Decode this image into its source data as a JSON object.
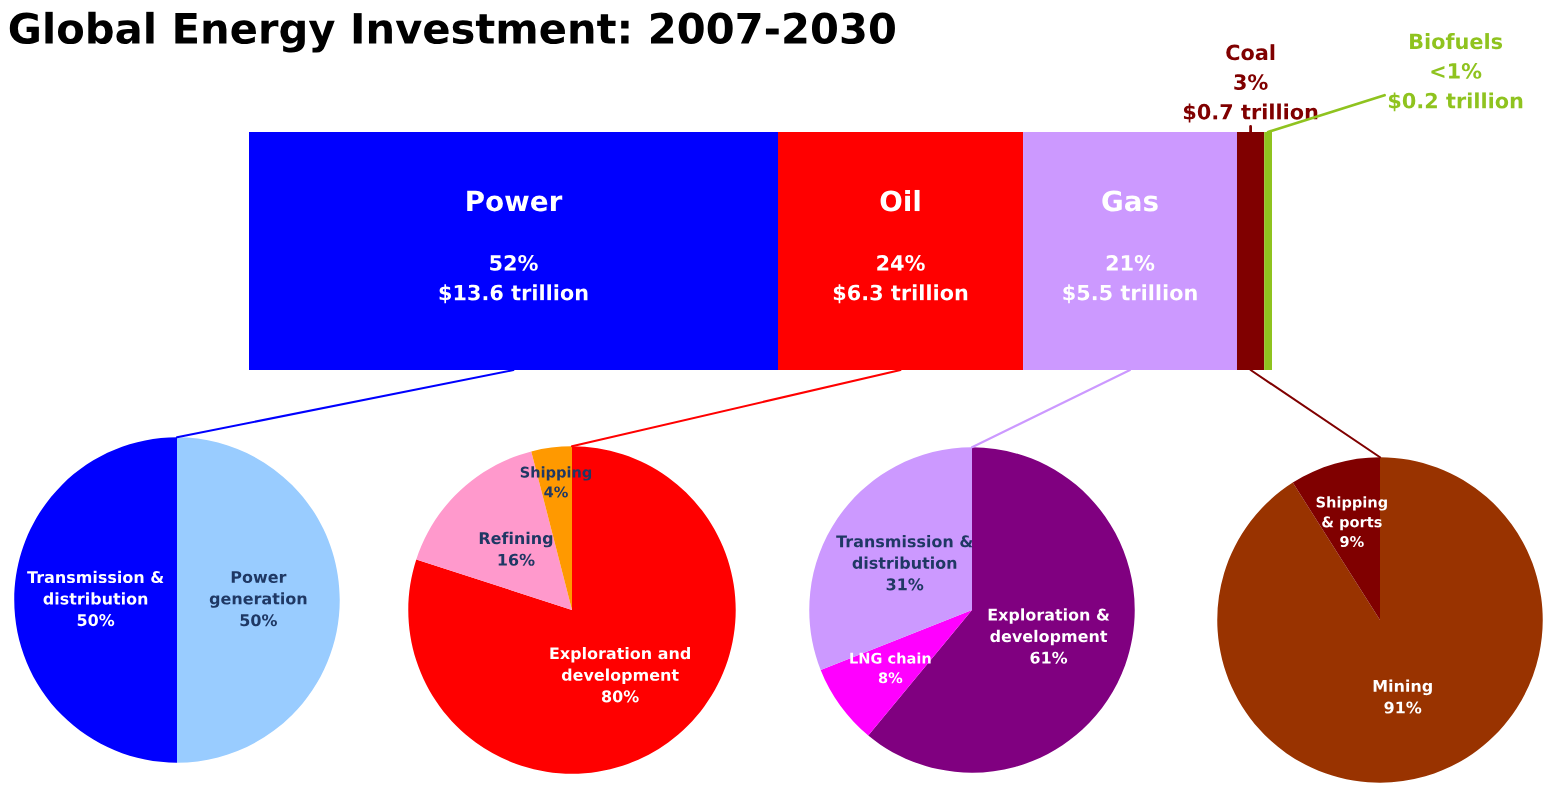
{
  "chart_data": [
    {
      "type": "bar",
      "title": "Global Energy Investment: 2007-2030",
      "orientation": "horizontal",
      "stacked": true,
      "tick_labels": false,
      "categories": [
        null
      ],
      "series": [
        {
          "name": "Power",
          "color": "#0000ff",
          "values": [
            13.6
          ],
          "value_labels": [
            "52%\n$13.6 trillion"
          ]
        },
        {
          "name": "Oil",
          "color": "#ff0000",
          "values": [
            6.3
          ],
          "value_labels": [
            "24%\n$6.3 trillion"
          ]
        },
        {
          "name": "Gas",
          "color": "#cc99ff",
          "values": [
            5.5
          ],
          "value_labels": [
            "21%\n$5.5 trillion"
          ]
        },
        {
          "name": "Coal",
          "color": "#800000",
          "values": [
            0.7
          ],
          "value_labels": [
            "3%\n$0.7 trillion"
          ]
        },
        {
          "name": "Biofuels",
          "color": "#8fc31f",
          "values": [
            0.2
          ],
          "value_labels": [
            "<1%\n$0.2 trillion"
          ]
        }
      ]
    },
    {
      "type": "pie",
      "categories": [
        "Power generation",
        "Transmission & distribution"
      ],
      "values": [
        50,
        50
      ],
      "colors": [
        "#99ccff",
        "#0000ff"
      ],
      "value_labels": [
        "50%",
        "50%"
      ]
    },
    {
      "type": "pie",
      "categories": [
        "Exploration and development",
        "Refining",
        "Shipping"
      ],
      "values": [
        80,
        16,
        4
      ],
      "colors": [
        "#ff0000",
        "#ff99cc",
        "#ff9900"
      ],
      "value_labels": [
        "80%",
        "16%",
        "4%"
      ]
    },
    {
      "type": "pie",
      "categories": [
        "Exploration & development",
        "LNG chain",
        "Transmission & distribution"
      ],
      "values": [
        61,
        8,
        31
      ],
      "colors": [
        "#800080",
        "#ff00ff",
        "#cc99ff"
      ],
      "value_labels": [
        "61%",
        "8%",
        "31%"
      ]
    },
    {
      "type": "pie",
      "categories": [
        "Mining",
        "Shipping & ports"
      ],
      "values": [
        91,
        9
      ],
      "colors": [
        "#993300",
        "#800000"
      ],
      "value_labels": [
        "91%",
        "9%"
      ]
    }
  ]
}
